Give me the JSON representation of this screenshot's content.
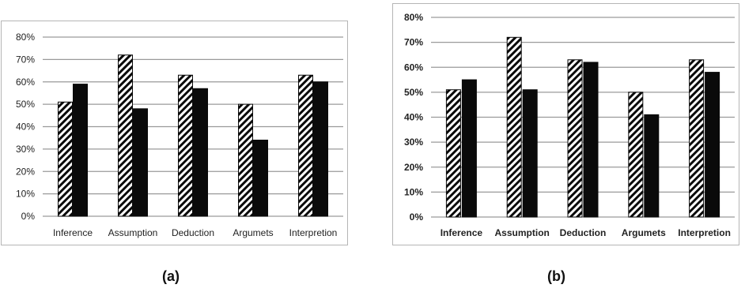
{
  "chart_data": [
    {
      "type": "bar",
      "categories": [
        "Inference",
        "Assumption",
        "Deduction",
        "Argumets",
        "Interpretion"
      ],
      "series": [
        {
          "values": [
            51,
            72,
            63,
            50,
            63
          ]
        },
        {
          "values": [
            59,
            48,
            57,
            34,
            60
          ]
        }
      ],
      "ylim": [
        0,
        80
      ],
      "yticks": [
        "0%",
        "10%",
        "20%",
        "30%",
        "40%",
        "50%",
        "60%",
        "70%",
        "80%"
      ],
      "grid": true,
      "series_style": [
        "hatched",
        "solid-black"
      ],
      "caption": "(a)"
    },
    {
      "type": "bar",
      "categories": [
        "Inference",
        "Assumption",
        "Deduction",
        "Argumets",
        "Interpretion"
      ],
      "series": [
        {
          "values": [
            51,
            72,
            63,
            50,
            63
          ]
        },
        {
          "values": [
            55,
            51,
            62,
            41,
            58
          ]
        }
      ],
      "ylim": [
        0,
        80
      ],
      "yticks": [
        "0%",
        "10%",
        "20%",
        "30%",
        "40%",
        "50%",
        "60%",
        "70%",
        "80%"
      ],
      "grid": true,
      "series_style": [
        "hatched",
        "solid-black"
      ],
      "caption": "(b)"
    }
  ],
  "colors": {
    "bar_solid": "#0a0a0a",
    "hatch": "#0a0a0a",
    "grid": "#9a9a9a",
    "axis_text": "#222222"
  }
}
